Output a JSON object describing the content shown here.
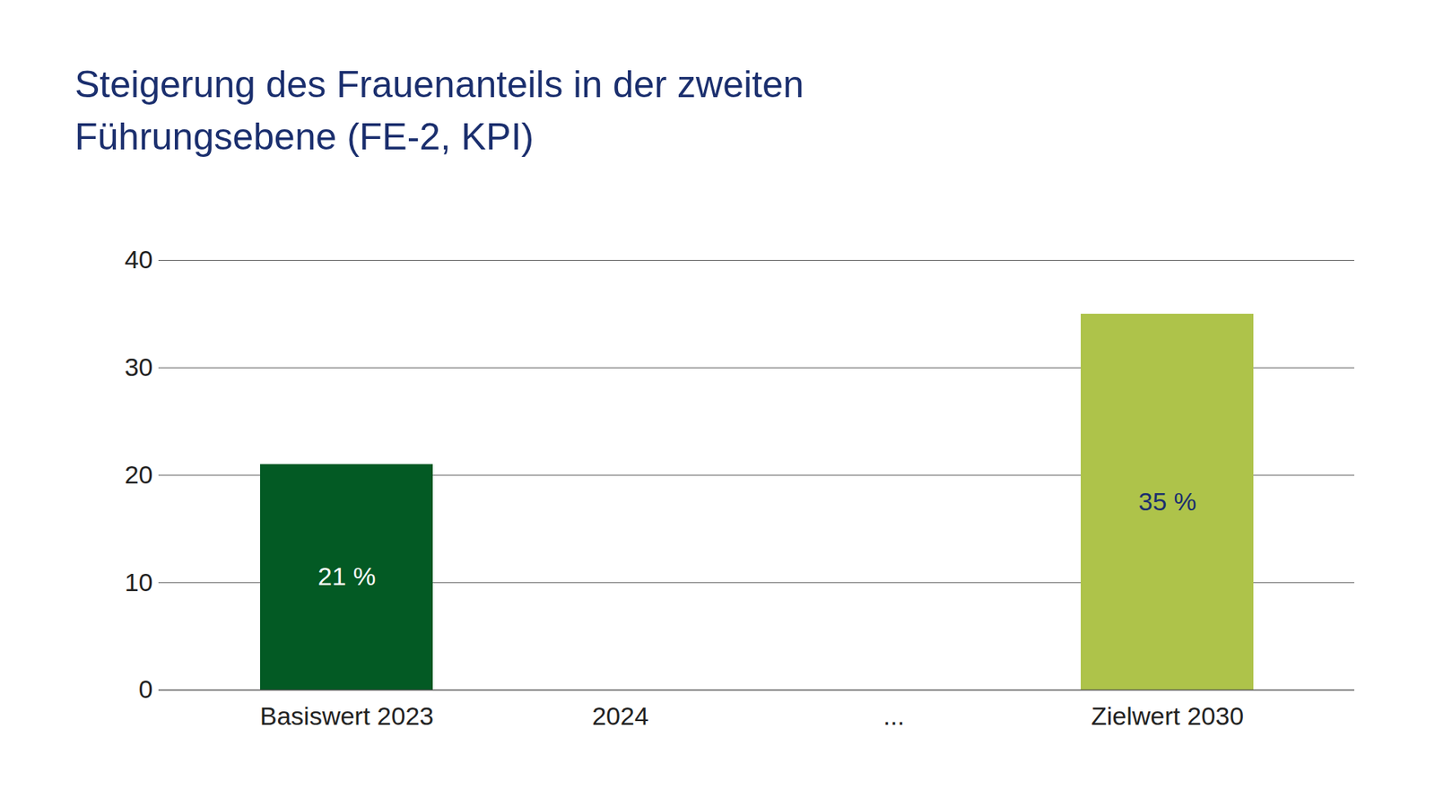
{
  "chart_data": {
    "type": "bar",
    "title": "Steigerung des Frauenanteils in der zweiten Führungsebene (FE-2, KPI)",
    "categories": [
      "Basiswert 2023",
      "2024",
      "...",
      "Zielwert 2030"
    ],
    "values": [
      21,
      null,
      null,
      35
    ],
    "value_labels": [
      "21 %",
      null,
      null,
      "35 %"
    ],
    "colors": [
      "#035a24",
      null,
      null,
      "#aec34a"
    ],
    "ylim": [
      0,
      40
    ],
    "yticks": [
      0,
      10,
      20,
      30,
      40
    ],
    "grid": true,
    "data_labels": true
  }
}
